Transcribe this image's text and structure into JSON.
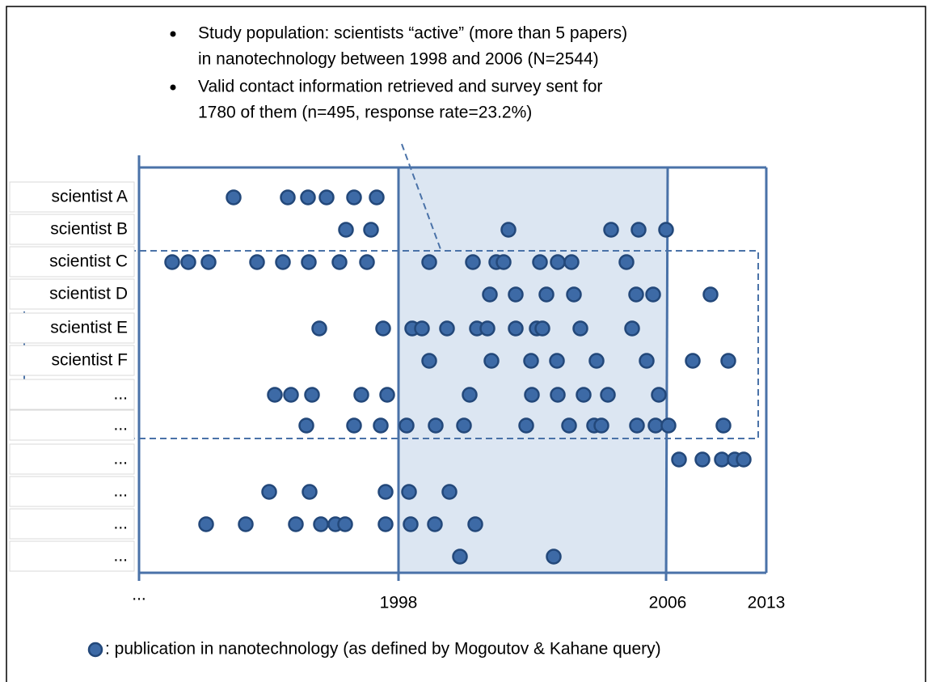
{
  "bullets": [
    {
      "lines": [
        "Study population: scientists “active” (more than 5 papers)",
        "in nanotechnology between 1998 and 2006 (N=2544)"
      ]
    },
    {
      "lines": [
        "Valid contact information retrieved and survey sent for",
        "1780 of them (n=495, response rate=23.2%)"
      ]
    }
  ],
  "rows": [
    "scientist A",
    "scientist B",
    "scientist C",
    "scientist D",
    "scientist E",
    "scientist F",
    "...",
    "...",
    "...",
    "...",
    "...",
    "..."
  ],
  "axis_labels": [
    "...",
    "1998",
    "2006",
    "2013"
  ],
  "legend": ": publication in nanotechnology (as defined by Mogoutov & Kahane query)"
}
